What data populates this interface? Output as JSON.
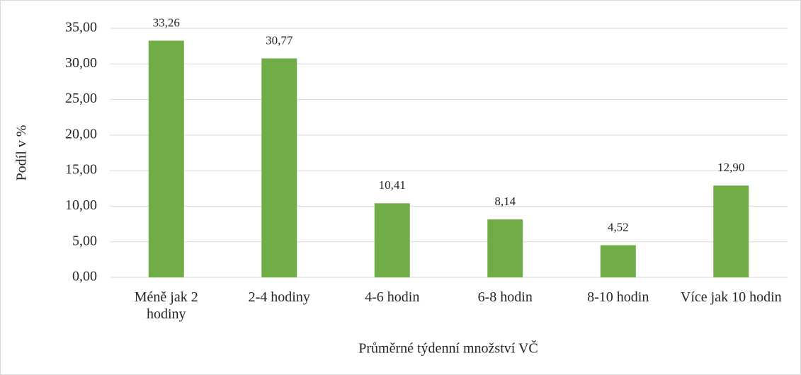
{
  "chart_data": {
    "type": "bar",
    "categories": [
      "Méně jak 2 hodiny",
      "2-4 hodiny",
      "4-6 hodin",
      "6-8 hodin",
      "8-10 hodin",
      "Více jak 10 hodin"
    ],
    "values": [
      33.26,
      30.77,
      10.41,
      8.14,
      4.52,
      12.9
    ],
    "value_labels": [
      "33,26",
      "30,77",
      "10,41",
      "8,14",
      "4,52",
      "12,90"
    ],
    "color": "#70ad47",
    "ylabel": "Podíl v %",
    "xlabel": "Průměrné týdenní množství VČ",
    "ylim": [
      0,
      35
    ],
    "yticks": [
      {
        "value": 0,
        "label": "0,00"
      },
      {
        "value": 5,
        "label": "5,00"
      },
      {
        "value": 10,
        "label": "10,00"
      },
      {
        "value": 15,
        "label": "15,00"
      },
      {
        "value": 20,
        "label": "20,00"
      },
      {
        "value": 25,
        "label": "25,00"
      },
      {
        "value": 30,
        "label": "30,00"
      },
      {
        "value": 35,
        "label": "35,00"
      }
    ],
    "grid": true
  }
}
